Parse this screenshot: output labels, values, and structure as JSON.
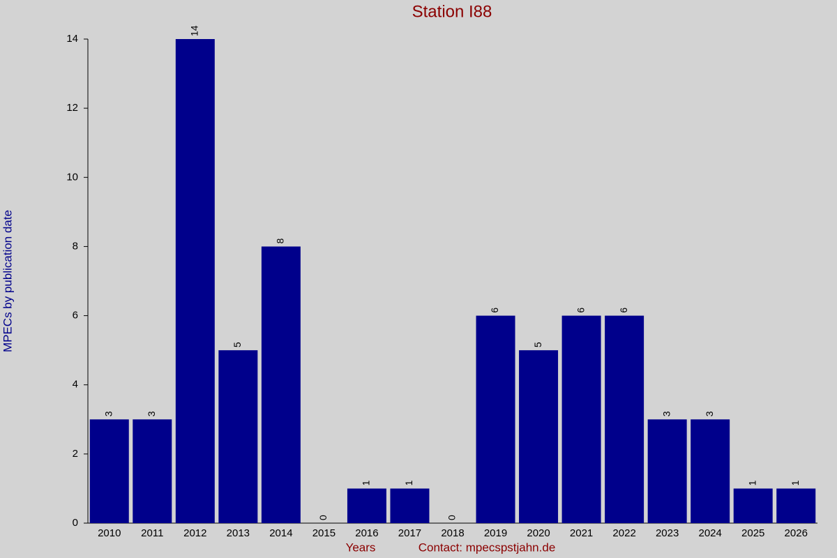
{
  "chart_data": {
    "type": "bar",
    "title": "Station I88",
    "x_label": "Years",
    "y_label": "MPECs by publication date",
    "footer": "Contact: mpecspstjahn.de",
    "categories": [
      "2010",
      "2011",
      "2012",
      "2013",
      "2014",
      "2015",
      "2016",
      "2017",
      "2018",
      "2019",
      "2020",
      "2021",
      "2022",
      "2023",
      "2024",
      "2025",
      "2026"
    ],
    "values": [
      3,
      3,
      14,
      5,
      8,
      0,
      1,
      1,
      0,
      6,
      5,
      6,
      6,
      3,
      3,
      1,
      1
    ],
    "color": "#00008b",
    "ylim": [
      0,
      14
    ],
    "yticks": [
      0,
      2,
      4,
      6,
      8,
      10,
      12,
      14
    ],
    "grid": false
  }
}
